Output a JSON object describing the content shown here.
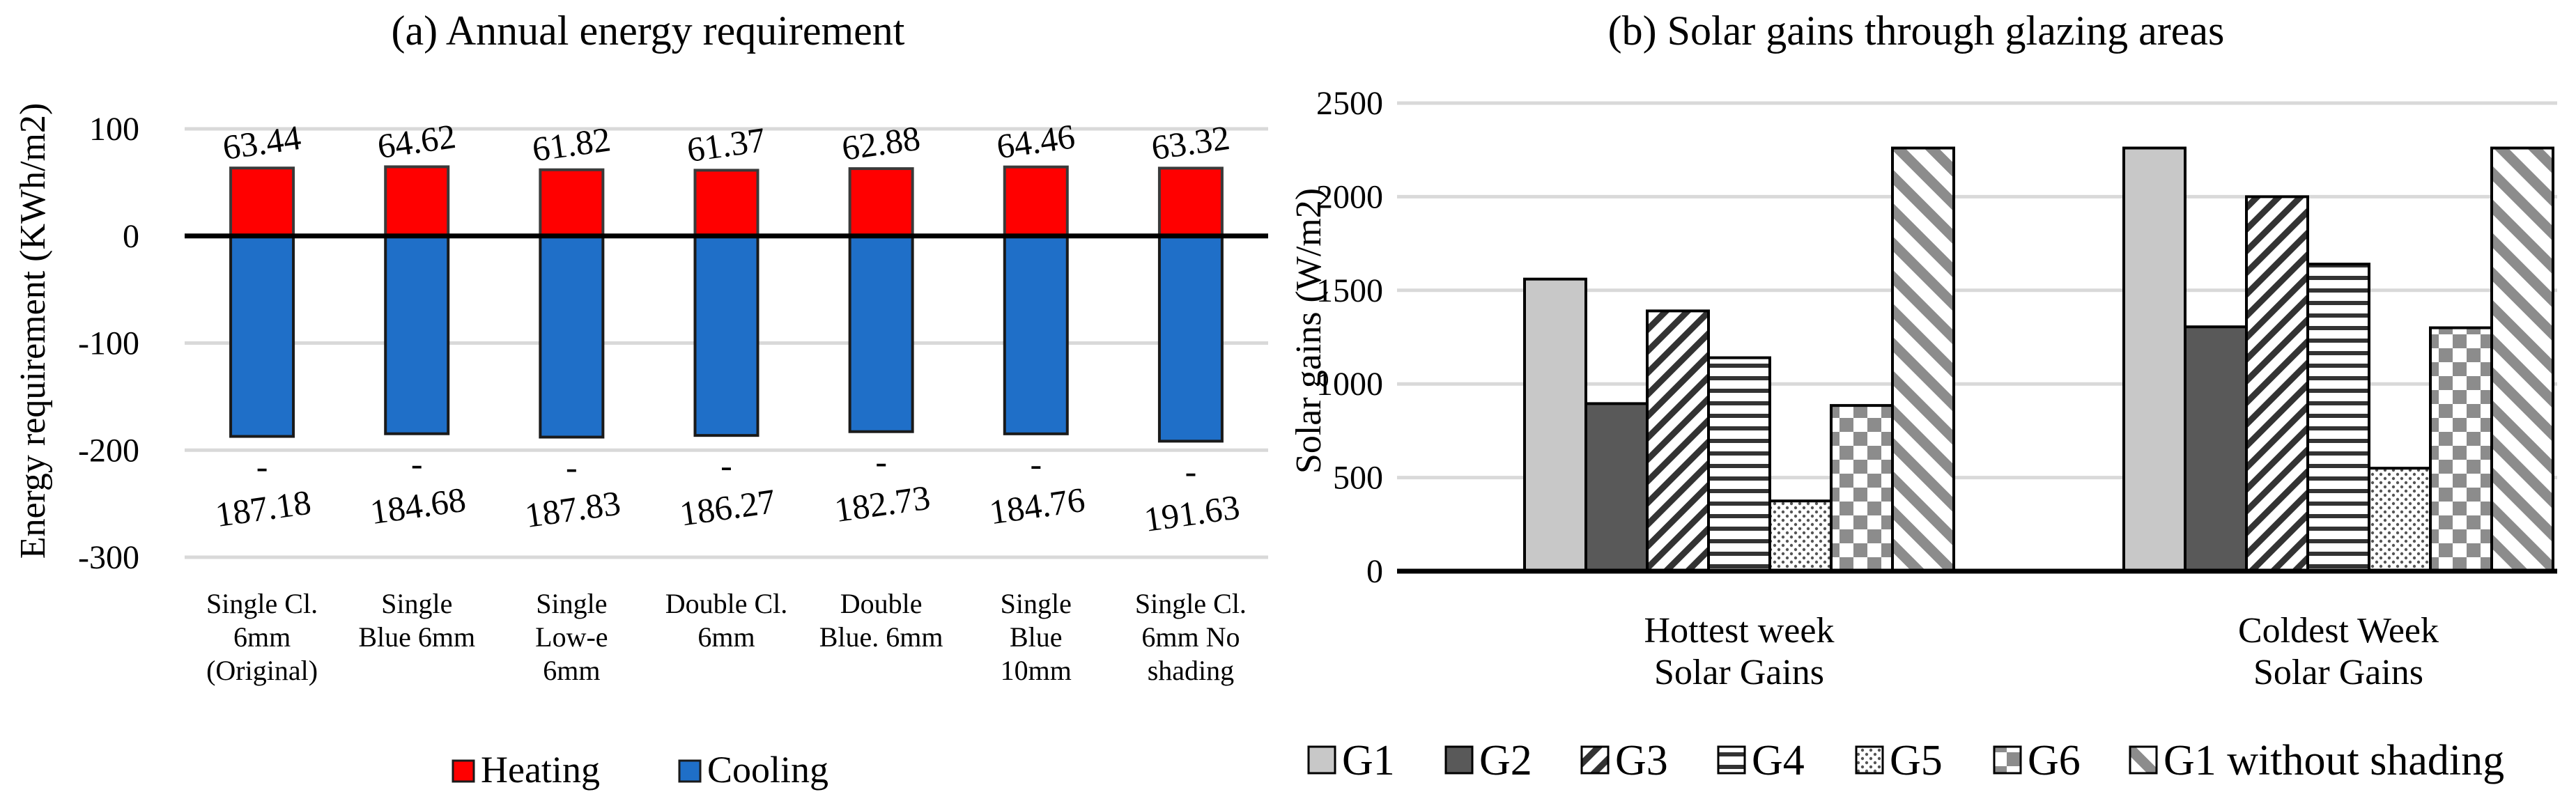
{
  "chart_data": [
    {
      "type": "bar",
      "title": "(a) Annual energy requirement",
      "xlabel": "",
      "ylabel": "Energy requirement (KWh/m2)",
      "ylim": [
        -300,
        100
      ],
      "yticks": [
        "-300",
        "-200",
        "-100",
        "0",
        "100"
      ],
      "categories": [
        [
          "Single Cl.",
          "6mm",
          "(Original)"
        ],
        [
          "Single",
          "Blue 6mm"
        ],
        [
          "Single",
          "Low-e",
          "6mm"
        ],
        [
          "Double Cl.",
          "6mm"
        ],
        [
          "Double",
          "Blue. 6mm"
        ],
        [
          "Single",
          "Blue",
          "10mm"
        ],
        [
          "Single Cl.",
          "6mm No",
          "shading"
        ]
      ],
      "series": [
        {
          "name": "Heating",
          "color": "#ff0000",
          "values": [
            63.44,
            64.62,
            61.82,
            61.37,
            62.88,
            64.46,
            63.32
          ],
          "labels": [
            "63.44",
            "64.62",
            "61.82",
            "61.37",
            "62.88",
            "64.46",
            "63.32"
          ]
        },
        {
          "name": "Cooling",
          "color": "#1f6fc8",
          "values": [
            -187.18,
            -184.68,
            -187.83,
            -186.27,
            -182.73,
            -184.76,
            -191.63
          ],
          "labels": [
            "187.18",
            "184.68",
            "187.83",
            "186.27",
            "182.73",
            "184.76",
            "191.63"
          ],
          "label_prefix": "-"
        }
      ],
      "legend": [
        "Heating",
        "Cooling"
      ],
      "legend_position": "bottom",
      "grid": true
    },
    {
      "type": "bar",
      "title": "(b) Solar gains through glazing areas",
      "xlabel": "",
      "ylabel": "Solar gains (W/m2)",
      "ylim": [
        0,
        2500
      ],
      "yticks": [
        "0",
        "500",
        "1000",
        "1500",
        "2000",
        "2500"
      ],
      "categories": [
        [
          "Hottest week",
          "Solar Gains"
        ],
        [
          "Coldest Week",
          "Solar Gains"
        ]
      ],
      "series": [
        {
          "name": "G1",
          "pattern": "solid-light",
          "values": [
            1560,
            2260
          ]
        },
        {
          "name": "G2",
          "pattern": "solid-dark",
          "values": [
            895,
            1305
          ]
        },
        {
          "name": "G3",
          "pattern": "diagonal",
          "values": [
            1390,
            2000
          ]
        },
        {
          "name": "G4",
          "pattern": "horizontal",
          "values": [
            1140,
            1640
          ]
        },
        {
          "name": "G5",
          "pattern": "dots",
          "values": [
            375,
            550
          ]
        },
        {
          "name": "G6",
          "pattern": "checker",
          "values": [
            885,
            1300
          ]
        },
        {
          "name": "G1 without shading",
          "pattern": "wide-diagonal",
          "values": [
            2260,
            2260
          ]
        }
      ],
      "legend_position": "bottom",
      "grid": true
    }
  ]
}
